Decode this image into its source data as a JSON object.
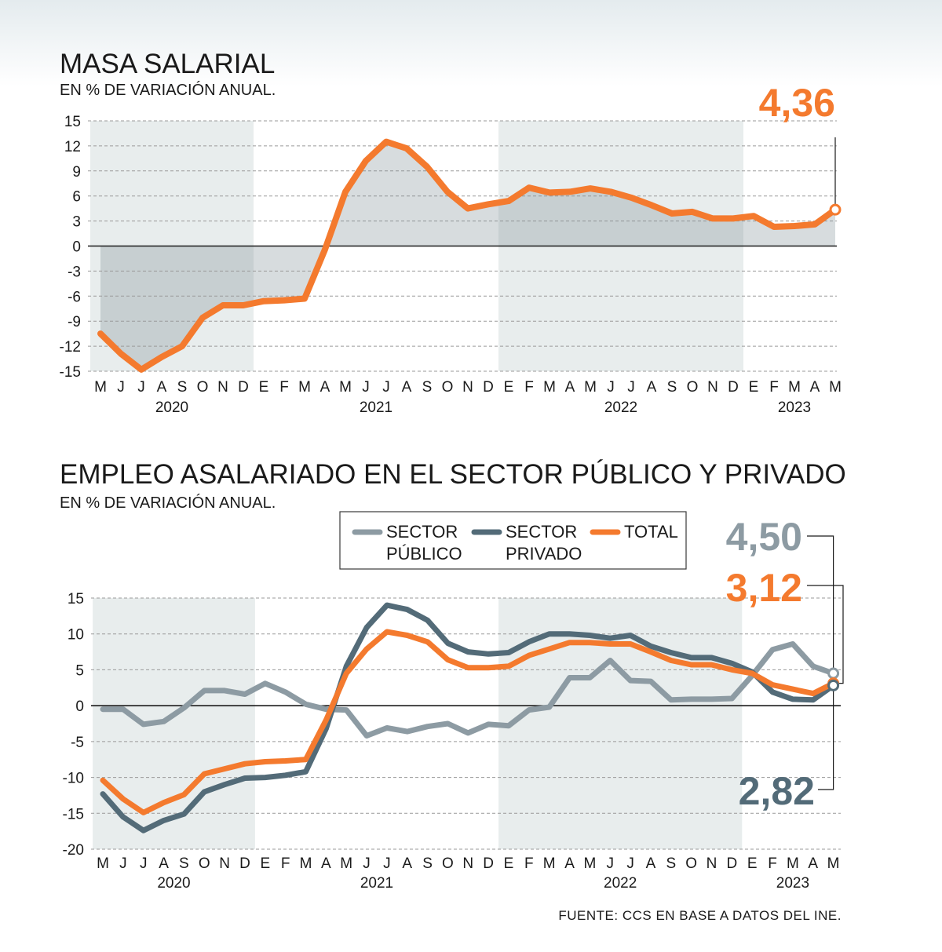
{
  "colors": {
    "orange": "#f47a2e",
    "publico": "#8d9ba3",
    "privado": "#536b78",
    "shade": "#e8eded",
    "area": "#d2d8db",
    "grid": "#9a9a9a"
  },
  "months": [
    "M",
    "J",
    "J",
    "A",
    "S",
    "O",
    "N",
    "D",
    "E",
    "F",
    "M",
    "A",
    "M",
    "J",
    "J",
    "A",
    "S",
    "O",
    "N",
    "D",
    "E",
    "F",
    "M",
    "A",
    "M",
    "J",
    "J",
    "A",
    "S",
    "O",
    "N",
    "D",
    "E",
    "F",
    "M",
    "A",
    "M"
  ],
  "years": [
    {
      "label": "2020",
      "start": 0,
      "end": 7
    },
    {
      "label": "2021",
      "start": 8,
      "end": 19
    },
    {
      "label": "2022",
      "start": 20,
      "end": 31
    },
    {
      "label": "2023",
      "start": 32,
      "end": 36
    }
  ],
  "source": "FUENTE: CCS EN BASE A DATOS DEL INE.",
  "chart_data": [
    {
      "type": "area",
      "title": "MASA SALARIAL",
      "subtitle": "EN % DE VARIACIÓN ANUAL.",
      "ylim": [
        -15,
        15
      ],
      "yticks": [
        "15",
        "12",
        "9",
        "6",
        "3",
        "0",
        "-3",
        "-6",
        "-9",
        "-12",
        "-15"
      ],
      "shaded_years": [
        "2020",
        "2022"
      ],
      "callout": "4,36",
      "series": [
        {
          "key": "total",
          "values": [
            -10.5,
            -12.9,
            -14.8,
            -13.3,
            -12.0,
            -8.6,
            -7.1,
            -7.1,
            -6.6,
            -6.5,
            -6.3,
            -0.4,
            6.5,
            10.2,
            12.5,
            11.7,
            9.5,
            6.5,
            4.5,
            5.0,
            5.4,
            7.0,
            6.4,
            6.5,
            6.9,
            6.5,
            5.8,
            4.9,
            3.9,
            4.1,
            3.3,
            3.3,
            3.6,
            2.3,
            2.4,
            2.6,
            4.36
          ]
        }
      ]
    },
    {
      "type": "line",
      "title": "EMPLEO ASALARIADO EN EL SECTOR PÚBLICO Y PRIVADO",
      "subtitle": "EN % DE VARIACIÓN ANUAL.",
      "ylim": [
        -20,
        15
      ],
      "yticks": [
        "15",
        "10",
        "5",
        "0",
        "-5",
        "-10",
        "-15",
        "-20"
      ],
      "shaded_years": [
        "2020",
        "2022"
      ],
      "legend": [
        {
          "key": "publico",
          "line1": "SECTOR",
          "line2": "PÚBLICO"
        },
        {
          "key": "privado",
          "line1": "SECTOR",
          "line2": "PRIVADO"
        },
        {
          "key": "total",
          "line1": "TOTAL",
          "line2": ""
        }
      ],
      "callouts": {
        "publico": "4,50",
        "total": "3,12",
        "privado": "2,82"
      },
      "series": [
        {
          "key": "publico",
          "values": [
            -0.5,
            -0.5,
            -2.6,
            -2.2,
            -0.3,
            2.1,
            2.1,
            1.6,
            3.1,
            1.9,
            0.2,
            -0.5,
            -0.6,
            -4.2,
            -3.1,
            -3.6,
            -2.9,
            -2.5,
            -3.8,
            -2.6,
            -2.8,
            -0.6,
            -0.2,
            3.9,
            3.9,
            6.3,
            3.5,
            3.4,
            0.8,
            0.9,
            0.9,
            1.0,
            4.2,
            7.8,
            8.6,
            5.5,
            4.5
          ]
        },
        {
          "key": "privado",
          "values": [
            -12.3,
            -15.5,
            -17.4,
            -16.0,
            -15.1,
            -12.0,
            -11.0,
            -10.1,
            -10.0,
            -9.7,
            -9.2,
            -3.2,
            5.5,
            10.9,
            14.0,
            13.4,
            11.9,
            8.7,
            7.5,
            7.2,
            7.4,
            8.9,
            10.0,
            10.0,
            9.8,
            9.4,
            9.8,
            8.3,
            7.4,
            6.7,
            6.7,
            5.9,
            4.7,
            1.9,
            0.9,
            0.8,
            2.82
          ]
        },
        {
          "key": "total",
          "values": [
            -10.4,
            -13.0,
            -14.9,
            -13.5,
            -12.4,
            -9.5,
            -8.8,
            -8.1,
            -7.8,
            -7.7,
            -7.5,
            -2.0,
            4.5,
            7.9,
            10.3,
            9.8,
            8.9,
            6.4,
            5.3,
            5.3,
            5.5,
            7.0,
            7.9,
            8.8,
            8.8,
            8.6,
            8.6,
            7.5,
            6.3,
            5.7,
            5.7,
            5.0,
            4.5,
            2.9,
            2.3,
            1.7,
            3.12
          ]
        }
      ]
    }
  ]
}
